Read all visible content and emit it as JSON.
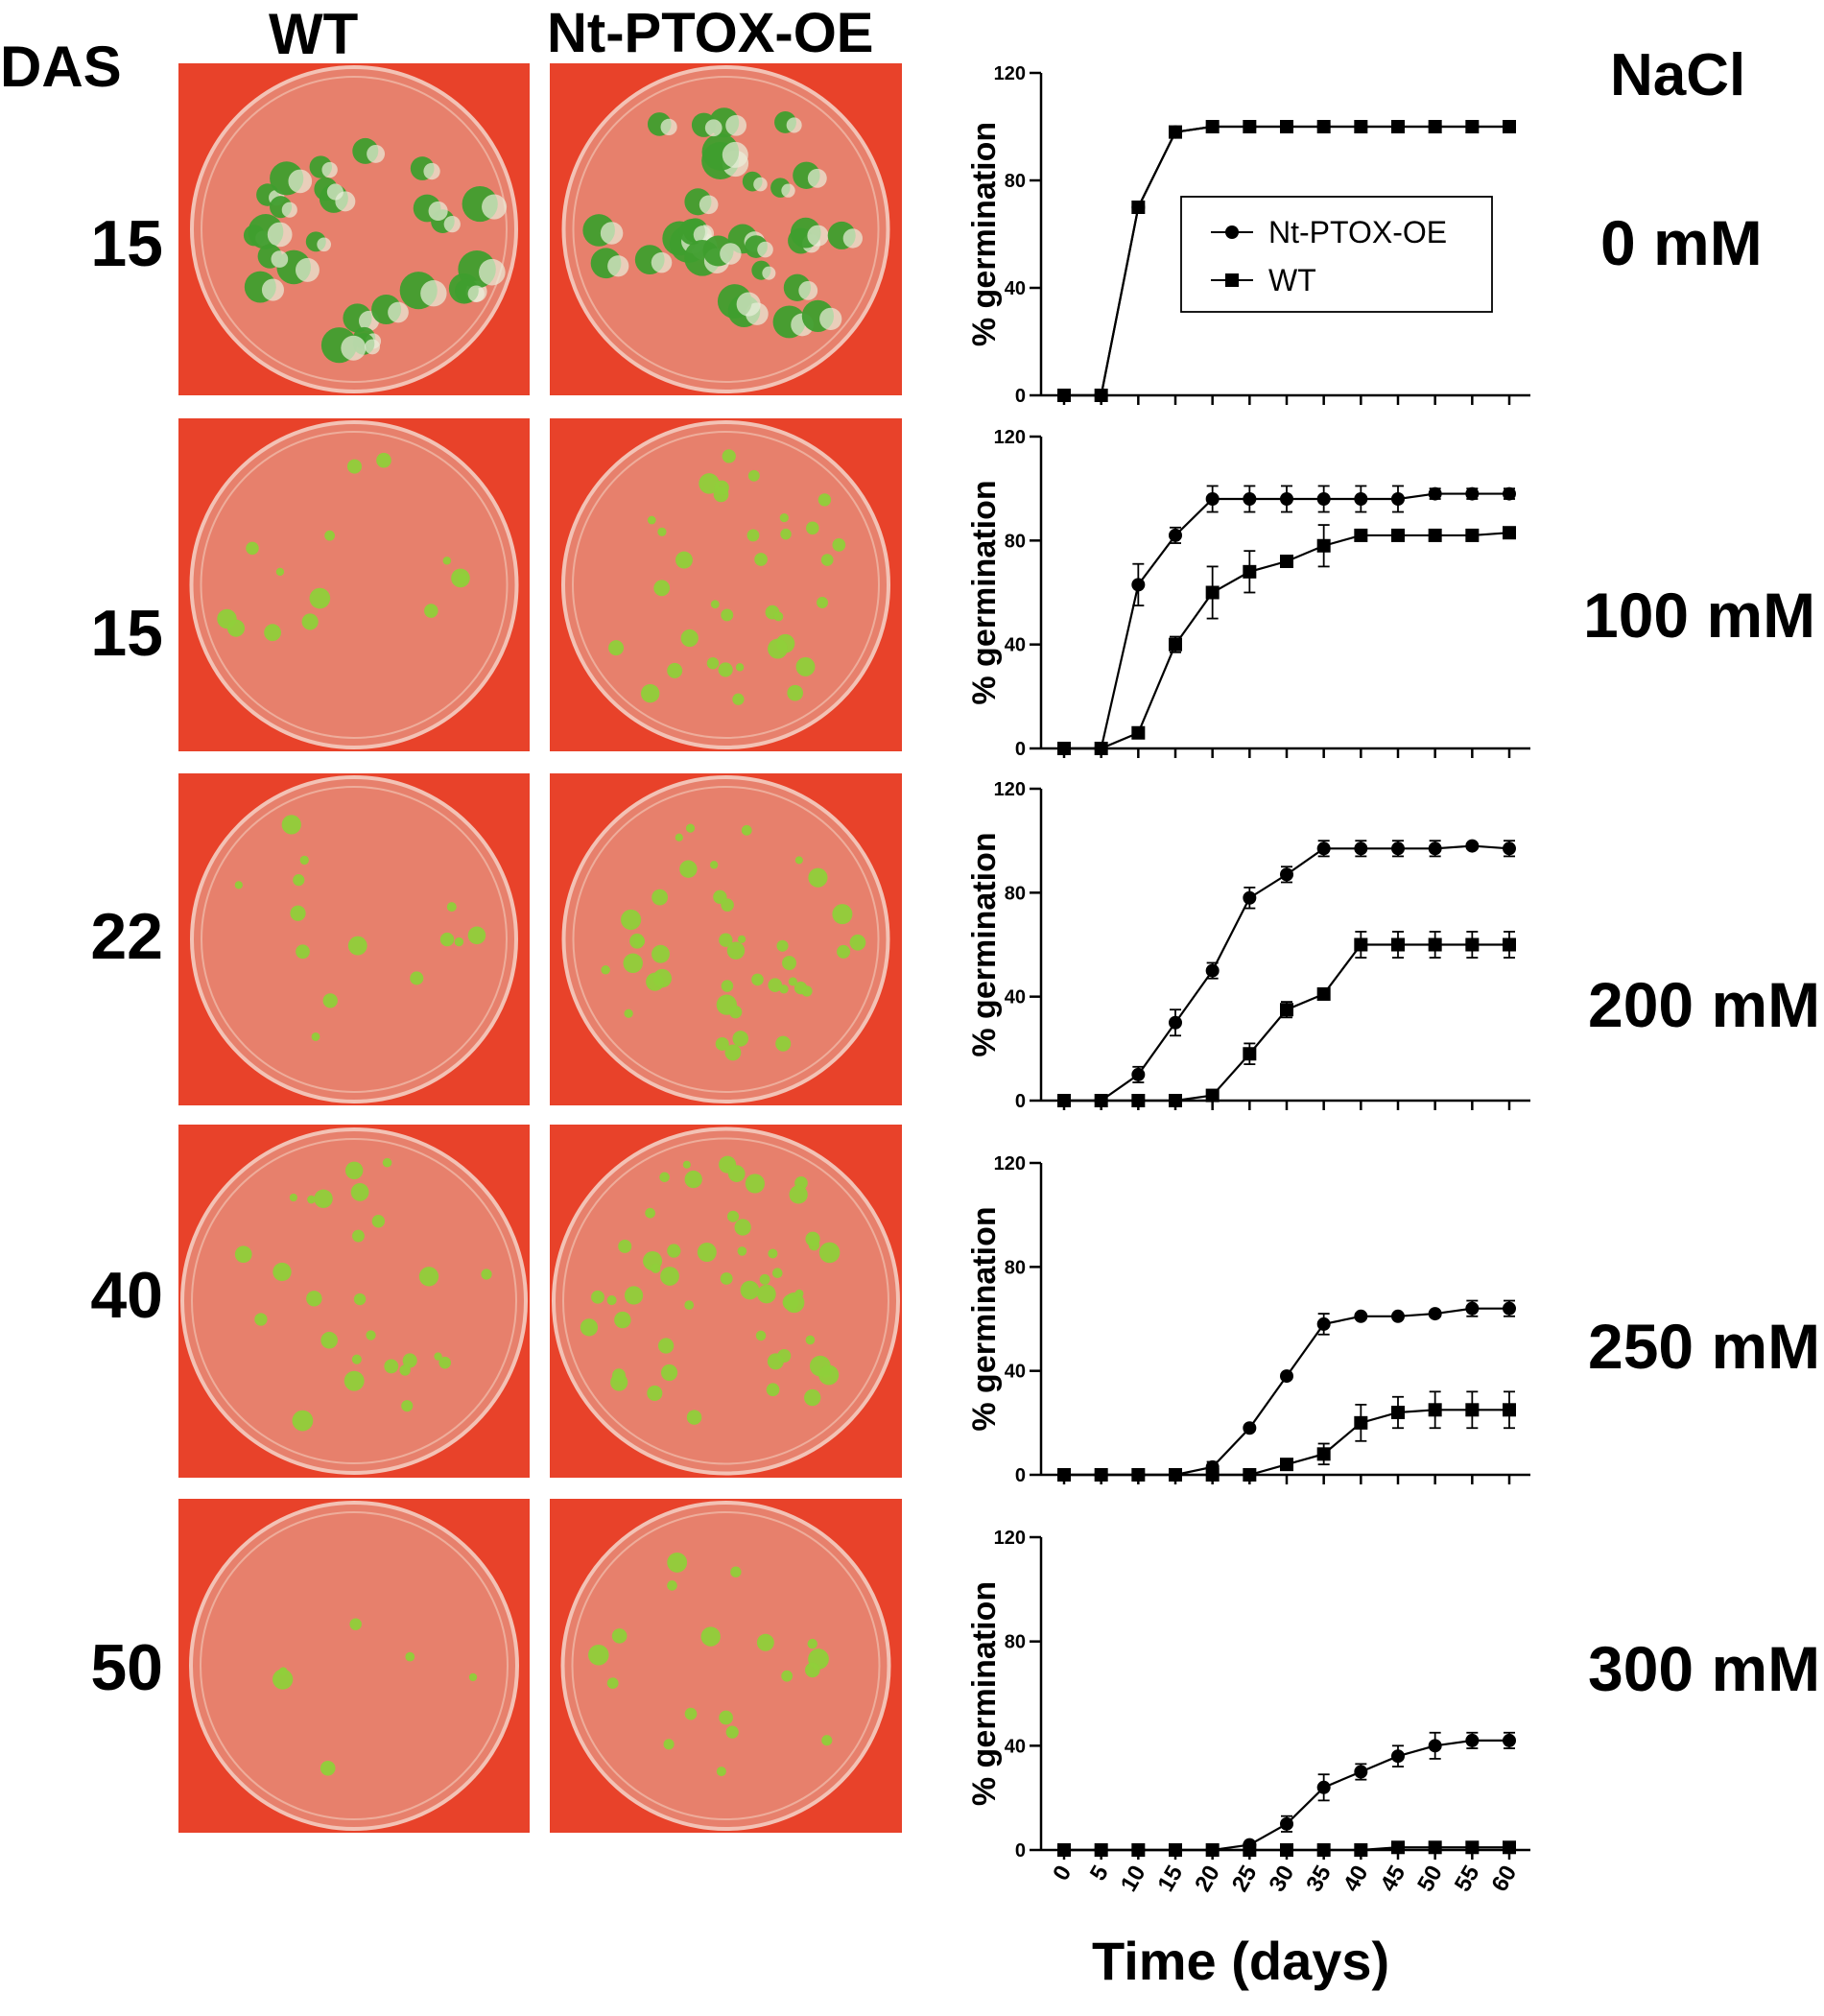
{
  "header": {
    "das": "DAS",
    "wt": "WT",
    "oe": "Nt-PTOX-OE",
    "nacl": "NaCl"
  },
  "rows": [
    {
      "das": "15",
      "nacl": "0 mM"
    },
    {
      "das": "15",
      "nacl": "100 mM"
    },
    {
      "das": "22",
      "nacl": "200 mM"
    },
    {
      "das": "40",
      "nacl": "250 mM"
    },
    {
      "das": "50",
      "nacl": "300 mM"
    }
  ],
  "colors": {
    "plate_background": "#e8422a",
    "agar": "#e7806c",
    "seedling": "#8fcf3a",
    "seedling_dark": "#3f9e2e",
    "line": "#000000"
  },
  "chart_data": {
    "type": "line",
    "ylabel": "% germination",
    "xlabel": "Time (days)",
    "x": [
      0,
      5,
      10,
      15,
      20,
      25,
      30,
      35,
      40,
      45,
      50,
      55,
      60
    ],
    "x_tick_labels": [
      "0",
      "5",
      "10",
      "15",
      "20",
      "25",
      "30",
      "35",
      "40",
      "45",
      "50",
      "55",
      "60"
    ],
    "ylim": [
      0,
      120
    ],
    "y_ticks": [
      0,
      40,
      80,
      120
    ],
    "legend": {
      "placement": "top-right",
      "panel": 0,
      "entries": [
        {
          "name": "Nt-PTOX-OE",
          "marker": "circle"
        },
        {
          "name": "WT",
          "marker": "square"
        }
      ]
    },
    "panels": [
      {
        "nacl": "0 mM",
        "series": [
          {
            "name": "Nt-PTOX-OE",
            "marker": "circle",
            "values": [
              0,
              0,
              70,
              98,
              100,
              100,
              100,
              100,
              100,
              100,
              100,
              100,
              100
            ],
            "errors": [
              0,
              0,
              0,
              0,
              0,
              0,
              0,
              0,
              0,
              0,
              0,
              0,
              0
            ]
          },
          {
            "name": "WT",
            "marker": "square",
            "values": [
              0,
              0,
              70,
              98,
              100,
              100,
              100,
              100,
              100,
              100,
              100,
              100,
              100
            ],
            "errors": [
              0,
              0,
              0,
              0,
              0,
              0,
              0,
              0,
              0,
              0,
              0,
              0,
              0
            ]
          }
        ]
      },
      {
        "nacl": "100 mM",
        "series": [
          {
            "name": "Nt-PTOX-OE",
            "marker": "circle",
            "values": [
              0,
              0,
              63,
              82,
              96,
              96,
              96,
              96,
              96,
              96,
              98,
              98,
              98
            ],
            "errors": [
              0,
              0,
              8,
              3,
              5,
              5,
              5,
              5,
              5,
              5,
              2,
              2,
              2
            ]
          },
          {
            "name": "WT",
            "marker": "square",
            "values": [
              0,
              0,
              6,
              40,
              60,
              68,
              72,
              78,
              82,
              82,
              82,
              82,
              83
            ],
            "errors": [
              0,
              0,
              0,
              3,
              10,
              8,
              2,
              8,
              0,
              0,
              0,
              0,
              0
            ]
          }
        ]
      },
      {
        "nacl": "200 mM",
        "series": [
          {
            "name": "Nt-PTOX-OE",
            "marker": "circle",
            "values": [
              0,
              0,
              10,
              30,
              50,
              78,
              87,
              97,
              97,
              97,
              97,
              98,
              97
            ],
            "errors": [
              0,
              0,
              3,
              5,
              3,
              4,
              3,
              3,
              3,
              3,
              3,
              1,
              3
            ]
          },
          {
            "name": "WT",
            "marker": "square",
            "values": [
              0,
              0,
              0,
              0,
              2,
              18,
              35,
              41,
              60,
              60,
              60,
              60,
              60
            ],
            "errors": [
              0,
              0,
              0,
              0,
              1,
              4,
              3,
              1,
              5,
              5,
              5,
              5,
              5
            ]
          }
        ]
      },
      {
        "nacl": "250 mM",
        "series": [
          {
            "name": "Nt-PTOX-OE",
            "marker": "circle",
            "values": [
              0,
              0,
              0,
              0,
              3,
              18,
              38,
              58,
              61,
              61,
              62,
              64,
              64
            ],
            "errors": [
              0,
              0,
              0,
              0,
              2,
              0,
              0,
              4,
              1,
              1,
              1,
              3,
              3
            ]
          },
          {
            "name": "WT",
            "marker": "square",
            "values": [
              0,
              0,
              0,
              0,
              0,
              0,
              4,
              8,
              20,
              24,
              25,
              25,
              25
            ],
            "errors": [
              0,
              0,
              0,
              0,
              0,
              0,
              2,
              4,
              7,
              6,
              7,
              7,
              7
            ]
          }
        ]
      },
      {
        "nacl": "300 mM",
        "series": [
          {
            "name": "Nt-PTOX-OE",
            "marker": "circle",
            "values": [
              0,
              0,
              0,
              0,
              0,
              2,
              10,
              24,
              30,
              36,
              40,
              42,
              42
            ],
            "errors": [
              0,
              0,
              0,
              0,
              0,
              0,
              3,
              5,
              3,
              4,
              5,
              3,
              3
            ]
          },
          {
            "name": "WT",
            "marker": "square",
            "values": [
              0,
              0,
              0,
              0,
              0,
              0,
              0,
              0,
              0,
              1,
              1,
              1,
              1
            ],
            "errors": [
              0,
              0,
              0,
              0,
              0,
              0,
              0,
              0,
              0,
              0,
              0,
              0,
              0
            ]
          }
        ]
      }
    ]
  }
}
